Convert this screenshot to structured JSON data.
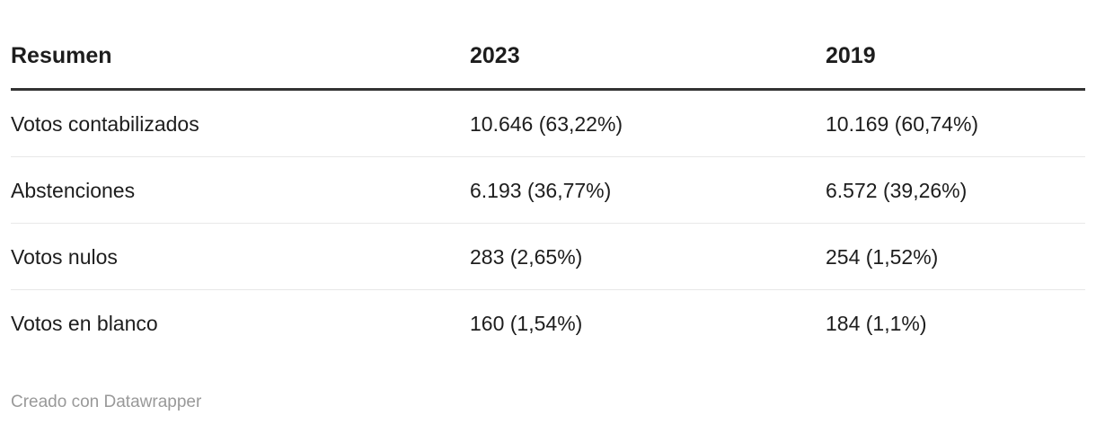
{
  "chart_data": {
    "type": "table",
    "title": "Resumen",
    "columns": [
      "Resumen",
      "2023",
      "2019"
    ],
    "rows": [
      [
        "Votos contabilizados",
        "10.646 (63,22%)",
        "10.169 (60,74%)"
      ],
      [
        "Abstenciones",
        "6.193 (36,77%)",
        "6.572 (39,26%)"
      ],
      [
        "Votos nulos",
        "283 (2,65%)",
        "254 (1,52%)"
      ],
      [
        "Votos en blanco",
        "160 (1,54%)",
        "184 (1,1%)"
      ]
    ],
    "values_numeric": {
      "2023": {
        "votos_contabilizados": 10646,
        "votos_contabilizados_pct": 63.22,
        "abstenciones": 6193,
        "abstenciones_pct": 36.77,
        "votos_nulos": 283,
        "votos_nulos_pct": 2.65,
        "votos_en_blanco": 160,
        "votos_en_blanco_pct": 1.54
      },
      "2019": {
        "votos_contabilizados": 10169,
        "votos_contabilizados_pct": 60.74,
        "abstenciones": 6572,
        "abstenciones_pct": 39.26,
        "votos_nulos": 254,
        "votos_nulos_pct": 1.52,
        "votos_en_blanco": 184,
        "votos_en_blanco_pct": 1.1
      }
    },
    "layout": {
      "header_rule_color": "#333333",
      "row_divider_color": "#e8e8e8",
      "grid": "horizontal-only"
    }
  },
  "footer": {
    "attribution": "Creado con Datawrapper"
  },
  "colors": {
    "text": "#1d1d1d",
    "header_rule": "#333333",
    "row_divider": "#e8e8e8",
    "footer_text": "#999999",
    "background": "#ffffff"
  }
}
